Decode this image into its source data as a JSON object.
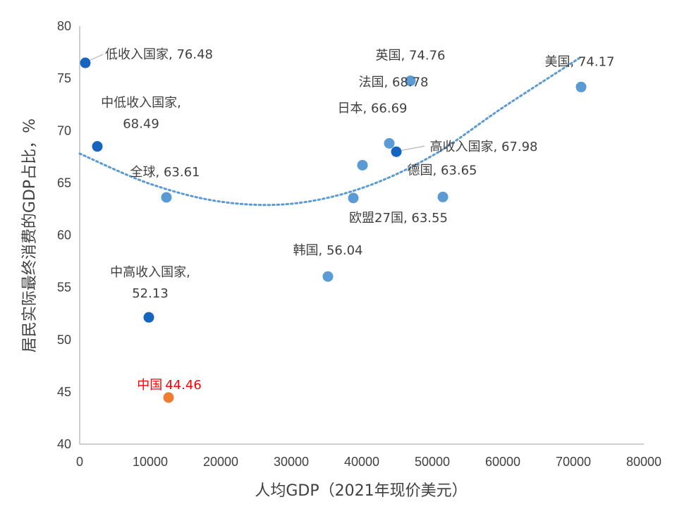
{
  "chart_data": {
    "type": "scatter",
    "xlabel": "人均GDP（2021年现价美元）",
    "ylabel": "居民实际最终消费的GDP占比，%",
    "xlim": [
      0,
      80000
    ],
    "ylim": [
      40,
      80
    ],
    "x_ticks": [
      "0",
      "10000",
      "20000",
      "30000",
      "40000",
      "50000",
      "60000",
      "70000",
      "80000"
    ],
    "y_ticks": [
      "40",
      "45",
      "50",
      "55",
      "60",
      "65",
      "70",
      "75",
      "80"
    ],
    "grid": false,
    "trendline": {
      "type": "polynomial",
      "order": 2,
      "style": "dotted",
      "color": "#5b9bd5",
      "points": [
        [
          0,
          67.8
        ],
        [
          10000,
          64.9
        ],
        [
          20000,
          63.2
        ],
        [
          30000,
          63.0
        ],
        [
          40000,
          64.5
        ],
        [
          50000,
          67.6
        ],
        [
          60000,
          72.2
        ],
        [
          71000,
          77.0
        ]
      ]
    },
    "colors": {
      "country": "#5b9bd5",
      "income_group": "#1565c0",
      "china": "#ed7d31",
      "china_label": "#ff0000",
      "text": "#404040"
    },
    "points": [
      {
        "name": "低收入国家",
        "x": 800,
        "y": 76.48,
        "group": "income_group",
        "label": "低收入国家, 76.48"
      },
      {
        "name": "中低收入国家",
        "x": 2500,
        "y": 68.49,
        "group": "income_group",
        "label_lines": [
          "中低收入国家,",
          "68.49"
        ]
      },
      {
        "name": "全球",
        "x": 12300,
        "y": 63.61,
        "group": "country",
        "label": "全球, 63.61"
      },
      {
        "name": "中高收入国家",
        "x": 9800,
        "y": 52.13,
        "group": "income_group",
        "label_lines": [
          "中高收入国家,",
          "52.13"
        ]
      },
      {
        "name": "中国",
        "x": 12600,
        "y": 44.46,
        "group": "china",
        "label_name": "中国",
        "label_value": "44.46"
      },
      {
        "name": "韩国",
        "x": 35200,
        "y": 56.04,
        "group": "country",
        "label": "韩国, 56.04"
      },
      {
        "name": "欧盟27国",
        "x": 38800,
        "y": 63.55,
        "group": "country",
        "label": "欧盟27国, 63.55"
      },
      {
        "name": "日本",
        "x": 40100,
        "y": 66.69,
        "group": "country",
        "label": "日本, 66.69"
      },
      {
        "name": "法国",
        "x": 43900,
        "y": 68.78,
        "group": "country",
        "label": "法国, 68.78"
      },
      {
        "name": "高收入国家",
        "x": 44900,
        "y": 67.98,
        "group": "income_group",
        "label": "高收入国家, 67.98"
      },
      {
        "name": "英国",
        "x": 46900,
        "y": 74.76,
        "group": "country",
        "label": "英国, 74.76"
      },
      {
        "name": "德国",
        "x": 51500,
        "y": 63.65,
        "group": "country",
        "label": "德国, 63.65"
      },
      {
        "name": "美国",
        "x": 71100,
        "y": 74.17,
        "group": "country",
        "label": "美国, 74.17"
      }
    ]
  }
}
